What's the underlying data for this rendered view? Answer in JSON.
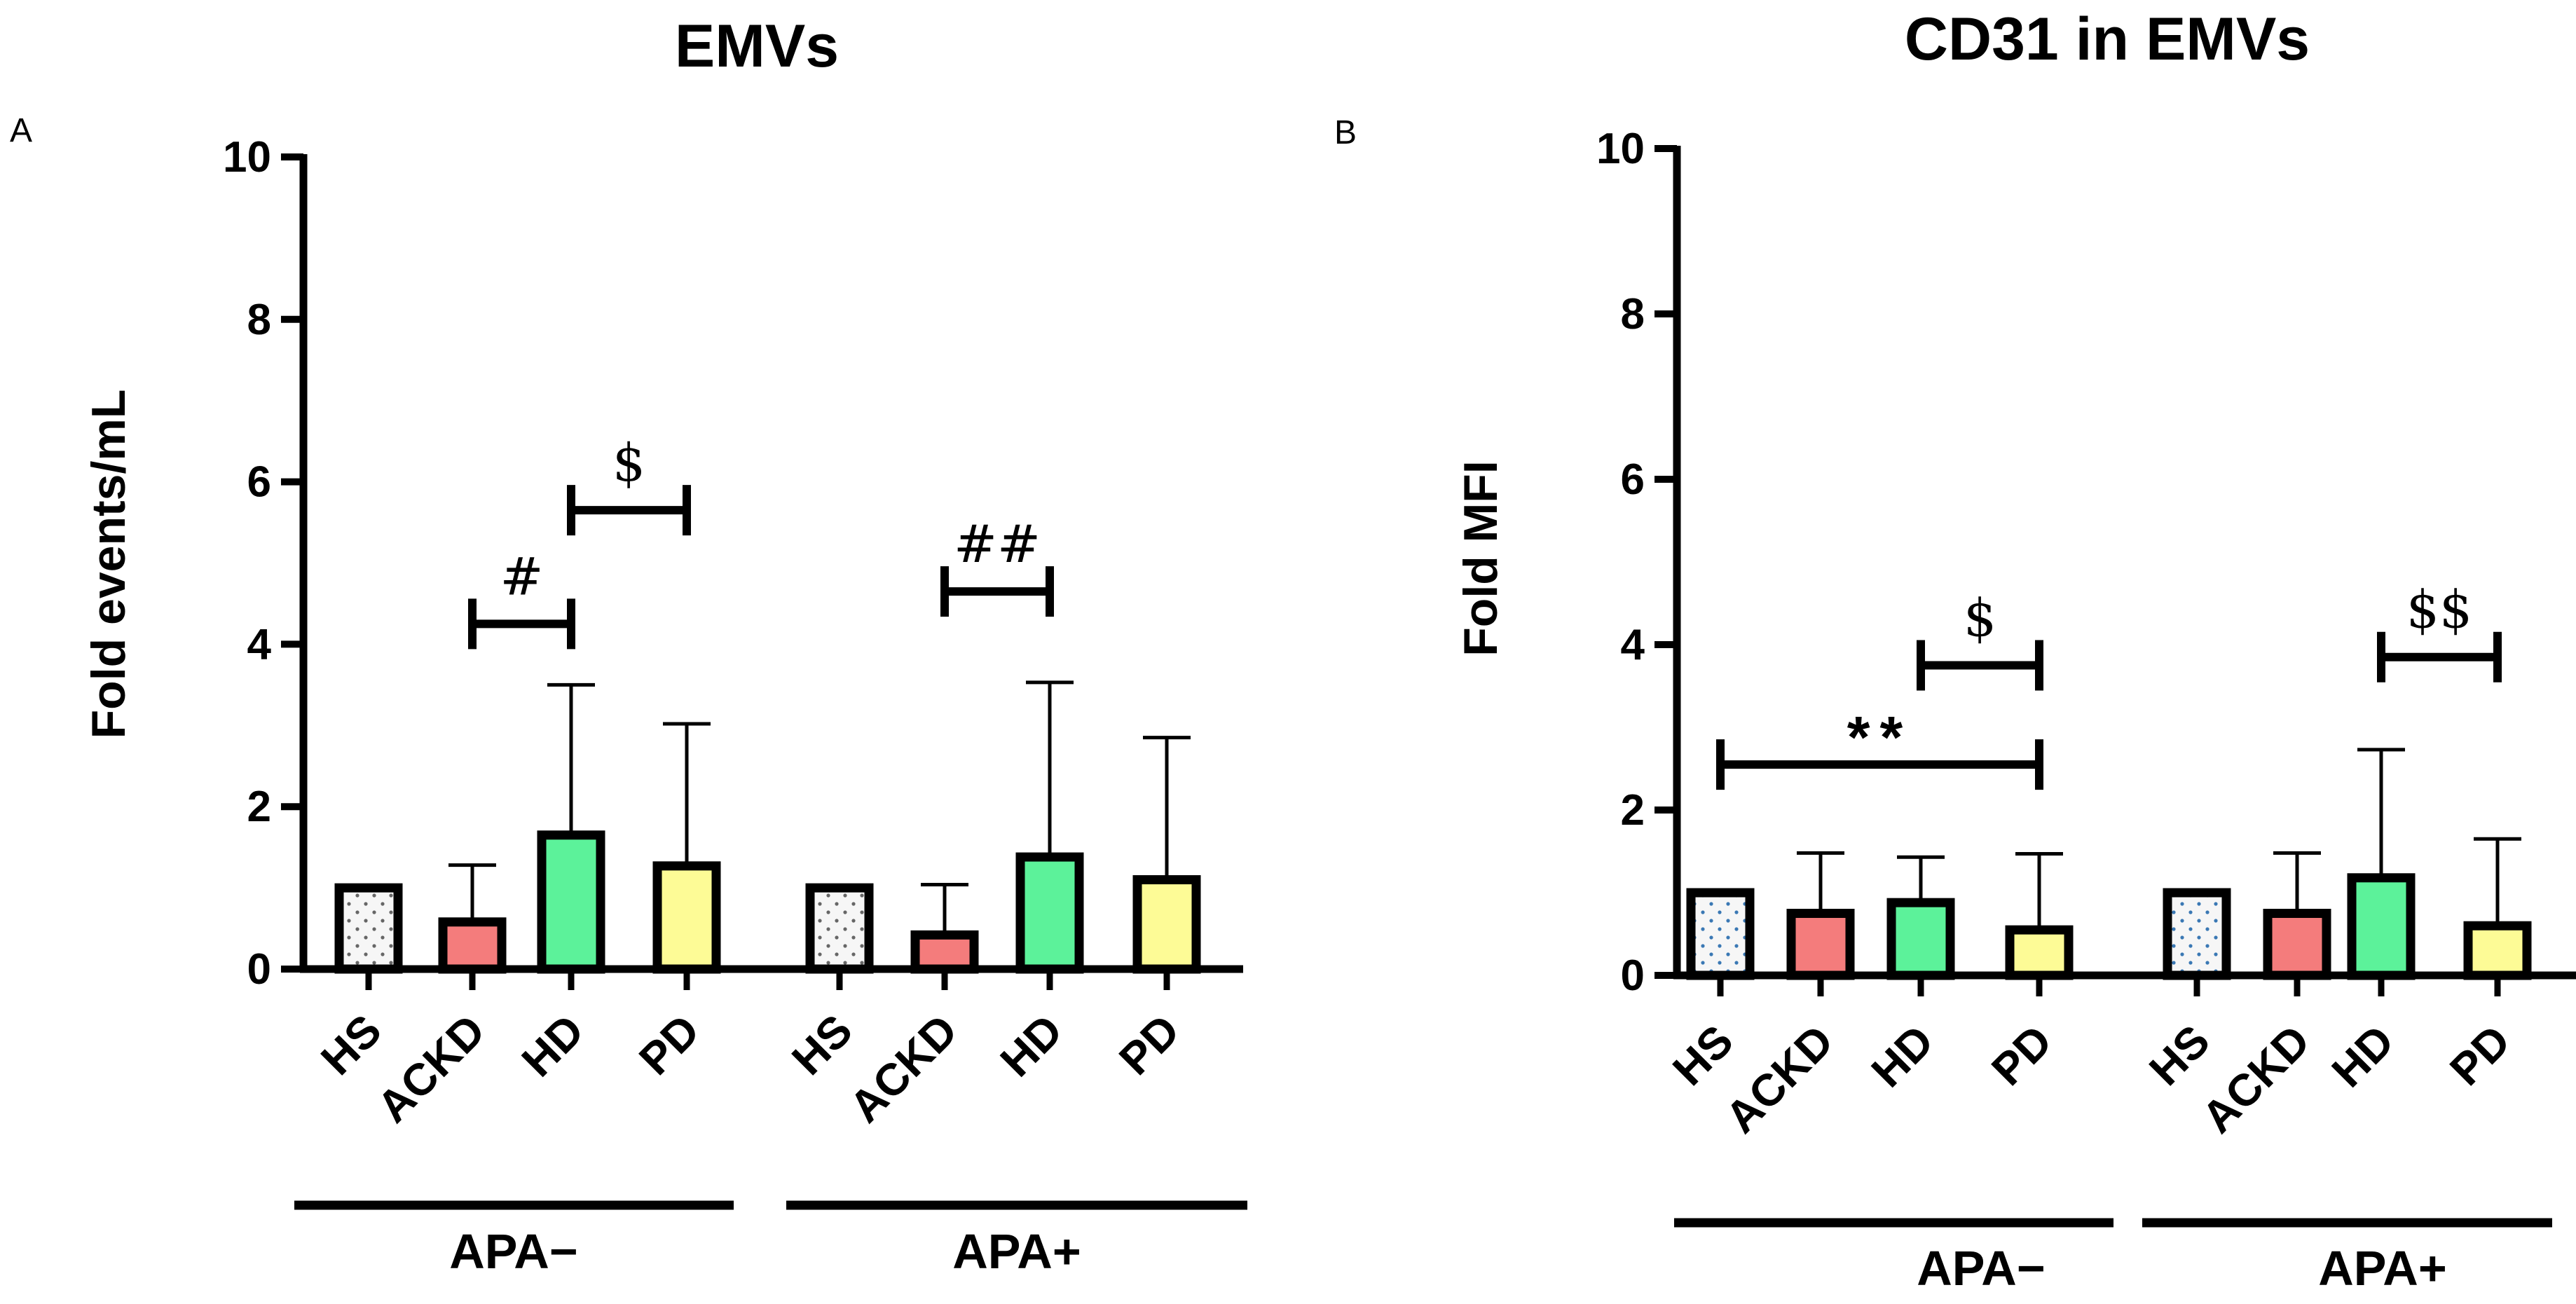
{
  "chart_data": [
    {
      "type": "bar",
      "panel": "A",
      "title": "EMVs",
      "ylabel": "Fold events/mL",
      "ylim": [
        0,
        10
      ],
      "yticks": [
        0,
        2,
        4,
        6,
        8,
        10
      ],
      "groups": [
        {
          "label": "APA−",
          "categories": [
            "HS",
            "ACKD",
            "HD",
            "PD"
          ],
          "values": [
            1.0,
            0.58,
            1.65,
            1.27
          ],
          "errors": [
            0,
            0.7,
            1.85,
            1.75
          ]
        },
        {
          "label": "APA+",
          "categories": [
            "HS",
            "ACKD",
            "HD",
            "PD"
          ],
          "values": [
            1.0,
            0.42,
            1.38,
            1.1
          ],
          "errors": [
            0,
            0.62,
            2.15,
            1.75
          ]
        }
      ],
      "significance": [
        {
          "label": "#",
          "group": 0,
          "from": 1,
          "to": 2,
          "y": 4.25
        },
        {
          "label": "$",
          "group": 0,
          "from": 2,
          "to": 3,
          "y": 5.65
        },
        {
          "label": "##",
          "group": 1,
          "from": 1,
          "to": 2,
          "y": 4.65
        }
      ]
    },
    {
      "type": "bar",
      "panel": "B",
      "title": "CD31 in EMVs",
      "ylabel": "Fold MFI",
      "ylim": [
        0,
        10
      ],
      "yticks": [
        0,
        2,
        4,
        6,
        8,
        10
      ],
      "groups": [
        {
          "label": "APA−",
          "categories": [
            "HS",
            "ACKD",
            "HD",
            "PD"
          ],
          "values": [
            1.0,
            0.75,
            0.88,
            0.55
          ],
          "errors": [
            0,
            0.73,
            0.55,
            0.92
          ]
        },
        {
          "label": "APA+",
          "categories": [
            "HS",
            "ACKD",
            "HD",
            "PD"
          ],
          "values": [
            1.0,
            0.75,
            1.18,
            0.6
          ],
          "errors": [
            0,
            0.73,
            1.55,
            1.05
          ]
        }
      ],
      "significance": [
        {
          "label": "**",
          "group": 0,
          "from": 0,
          "to": 3,
          "y": 2.55
        },
        {
          "label": "$",
          "group": 0,
          "from": 2,
          "to": 3,
          "y": 3.75
        },
        {
          "label": "$$",
          "group": 1,
          "from": 2,
          "to": 3,
          "y": 3.85
        }
      ]
    }
  ],
  "colors": {
    "HS": "#f6f6f6",
    "ACKD": "#f47c7c",
    "HD": "#5cf29a",
    "PD": "#fdfb96",
    "HS_dots_A": "#666666",
    "HS_dots_B": "#3a78b4",
    "stroke": "#000000"
  }
}
